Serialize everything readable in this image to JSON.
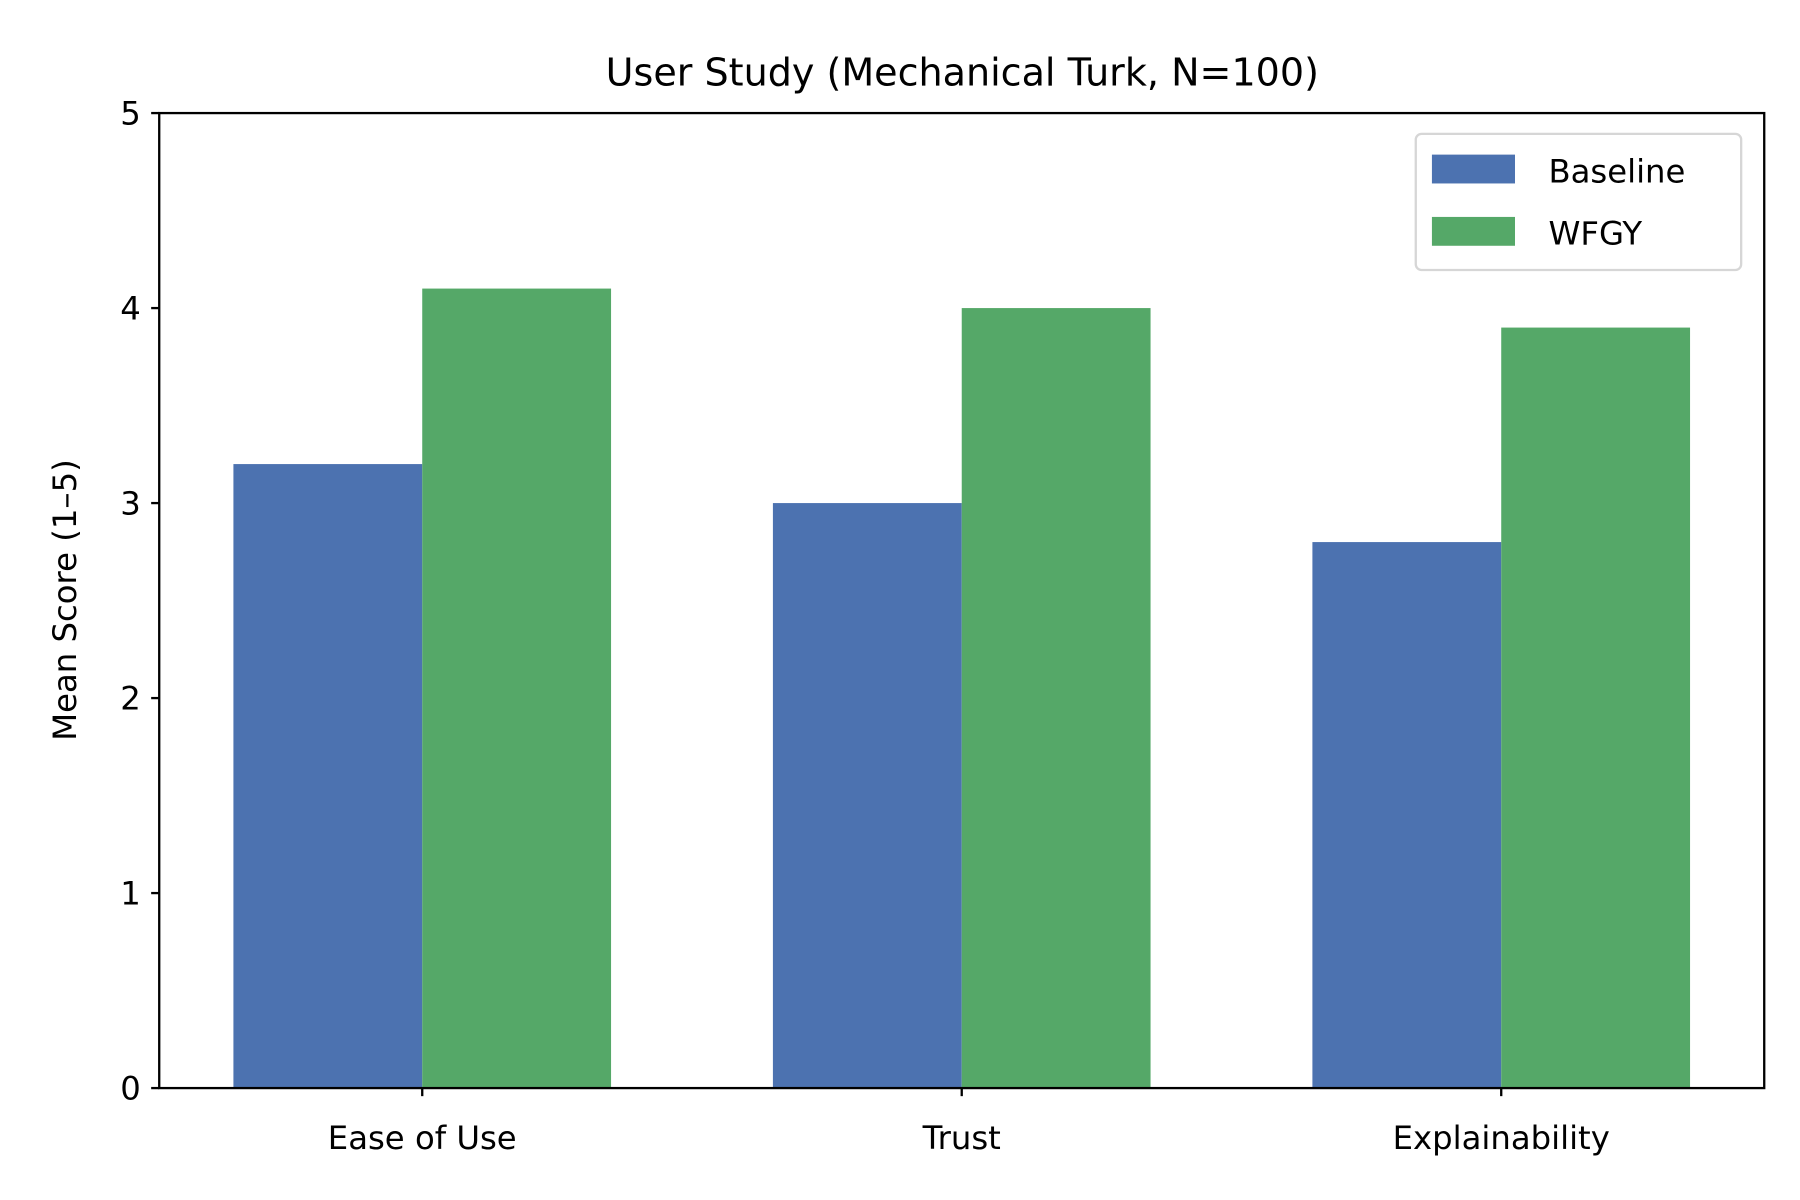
{
  "chart_data": {
    "type": "bar",
    "title": "User Study (Mechanical Turk, N=100)",
    "xlabel": "",
    "ylabel": "Mean Score (1–5)",
    "ylim": [
      0,
      5
    ],
    "yticks": [
      "0",
      "1",
      "2",
      "3",
      "4",
      "5"
    ],
    "categories": [
      "Ease of Use",
      "Trust",
      "Explainability"
    ],
    "series": [
      {
        "name": "Baseline",
        "color": "#4c72b0",
        "values": [
          3.2,
          3.0,
          2.8
        ]
      },
      {
        "name": "WFGY",
        "color": "#55a868",
        "values": [
          4.1,
          4.0,
          3.9
        ]
      }
    ],
    "bar_width": 0.35,
    "grid": false,
    "legend": "top-right"
  }
}
